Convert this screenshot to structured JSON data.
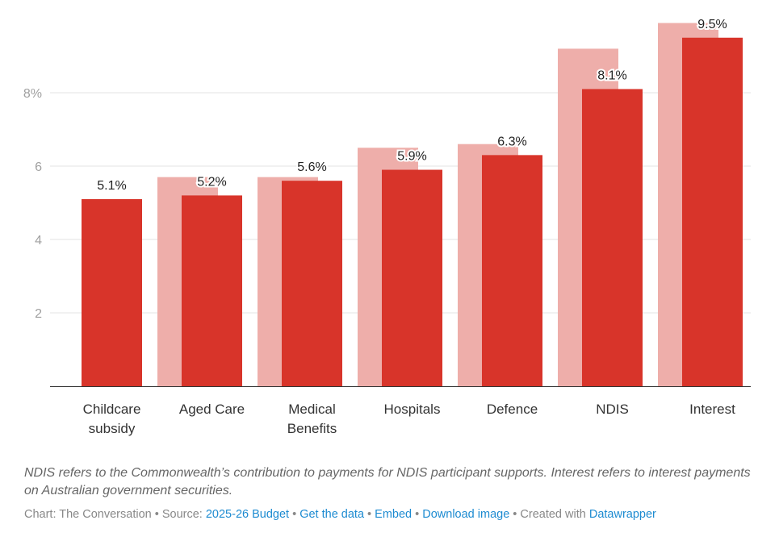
{
  "chart_data": {
    "type": "bar",
    "categories": [
      [
        "Childcare",
        "subsidy"
      ],
      [
        "Aged Care"
      ],
      [
        "Medical",
        "Benefits"
      ],
      [
        "Hospitals"
      ],
      [
        "Defence"
      ],
      [
        "NDIS"
      ],
      [
        "Interest"
      ]
    ],
    "series": [
      {
        "values": [
          null,
          5.7,
          5.7,
          6.5,
          6.6,
          9.2,
          9.9
        ],
        "color": "#eeaeaa"
      },
      {
        "values": [
          5.1,
          5.2,
          5.6,
          5.9,
          6.3,
          8.1,
          9.5
        ],
        "color": "#d8342a"
      }
    ],
    "data_labels": [
      "5.1%",
      "5.2%",
      "5.6%",
      "5.9%",
      "6.3%",
      "8.1%",
      "9.5%"
    ],
    "yticks": [
      {
        "v": 2,
        "label": "2"
      },
      {
        "v": 4,
        "label": "4"
      },
      {
        "v": 6,
        "label": "6"
      },
      {
        "v": 8,
        "label": "8%"
      }
    ],
    "ylim": [
      0,
      10.5
    ],
    "grid": true
  },
  "notes": "NDIS refers to the Commonwealth’s contribution to payments for NDIS participant supports. Interest refers to interest payments on Australian government securities.",
  "footer": {
    "chart_by": "Chart: The Conversation",
    "source_label": "Source:",
    "source_link": "2025-26 Budget",
    "get_data": "Get the data",
    "embed": "Embed",
    "download": "Download image",
    "created_with": "Created with",
    "datawrapper": "Datawrapper",
    "sep": "•"
  }
}
